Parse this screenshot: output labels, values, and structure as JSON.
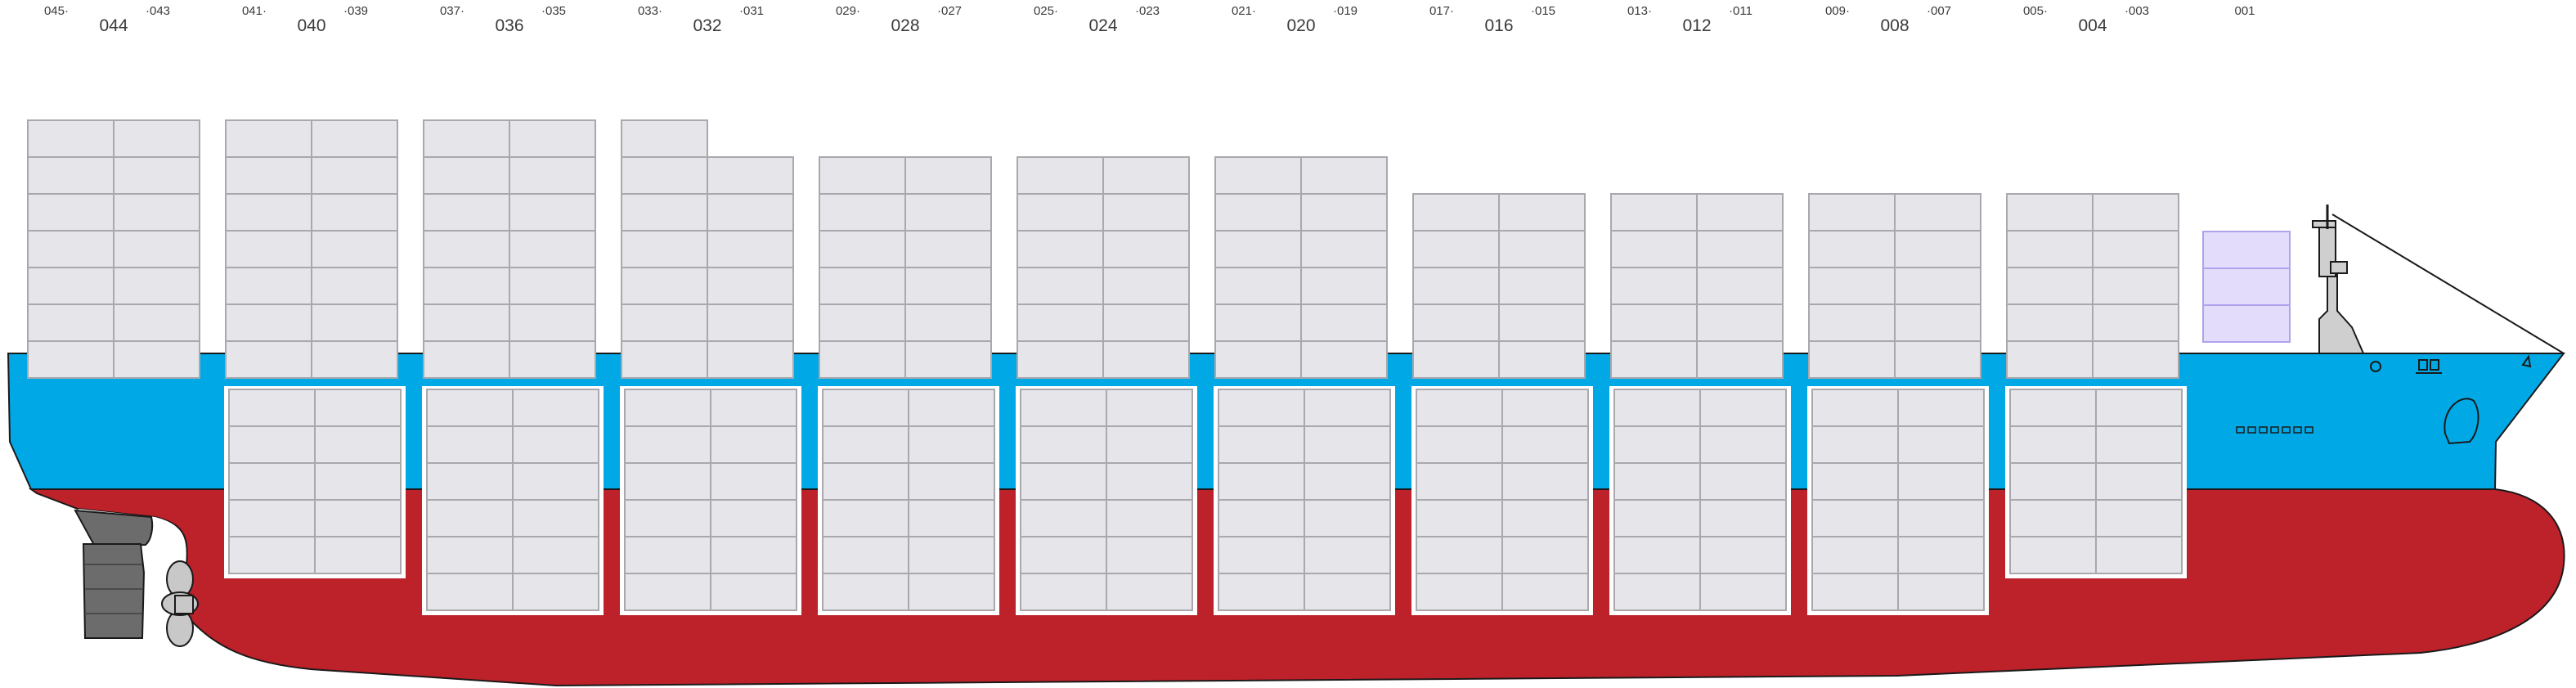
{
  "colors": {
    "hull_blue": "#00a9e6",
    "hull_red": "#bd2129",
    "container_fill": "#e6e5e9",
    "container_stroke": "#a9a8ad",
    "reefer_fill": "#e3ddfb",
    "reefer_stroke": "#b0a3ec",
    "outline": "#1a1a1a",
    "propeller": "#c8c8c8",
    "rudder": "#6c6c6c"
  },
  "bays": [
    {
      "main": "044",
      "left": "045",
      "right": "043",
      "deck_tiers": 7,
      "hold_tiers": 0
    },
    {
      "main": "040",
      "left": "041",
      "right": "039",
      "deck_tiers": 7,
      "hold_tiers": 5
    },
    {
      "main": "036",
      "left": "037",
      "right": "035",
      "deck_tiers": 7,
      "hold_tiers": 6
    },
    {
      "main": "032",
      "left": "033",
      "right": "031",
      "deck_tiers": 6,
      "hold_tiers": 6,
      "extra_half_tier": 1
    },
    {
      "main": "028",
      "left": "029",
      "right": "027",
      "deck_tiers": 6,
      "hold_tiers": 6
    },
    {
      "main": "024",
      "left": "025",
      "right": "023",
      "deck_tiers": 6,
      "hold_tiers": 6
    },
    {
      "main": "020",
      "left": "021",
      "right": "019",
      "deck_tiers": 6,
      "hold_tiers": 6
    },
    {
      "main": "016",
      "left": "017",
      "right": "015",
      "deck_tiers": 5,
      "hold_tiers": 6
    },
    {
      "main": "012",
      "left": "013",
      "right": "011",
      "deck_tiers": 5,
      "hold_tiers": 6
    },
    {
      "main": "008",
      "left": "009",
      "right": "007",
      "deck_tiers": 5,
      "hold_tiers": 6
    },
    {
      "main": "004",
      "left": "005",
      "right": "003",
      "deck_tiers": 5,
      "hold_tiers": 5
    }
  ],
  "forward_bay": {
    "main": "",
    "left": "",
    "right": "001",
    "deck_tiers": 3,
    "hold_tiers": 0
  }
}
